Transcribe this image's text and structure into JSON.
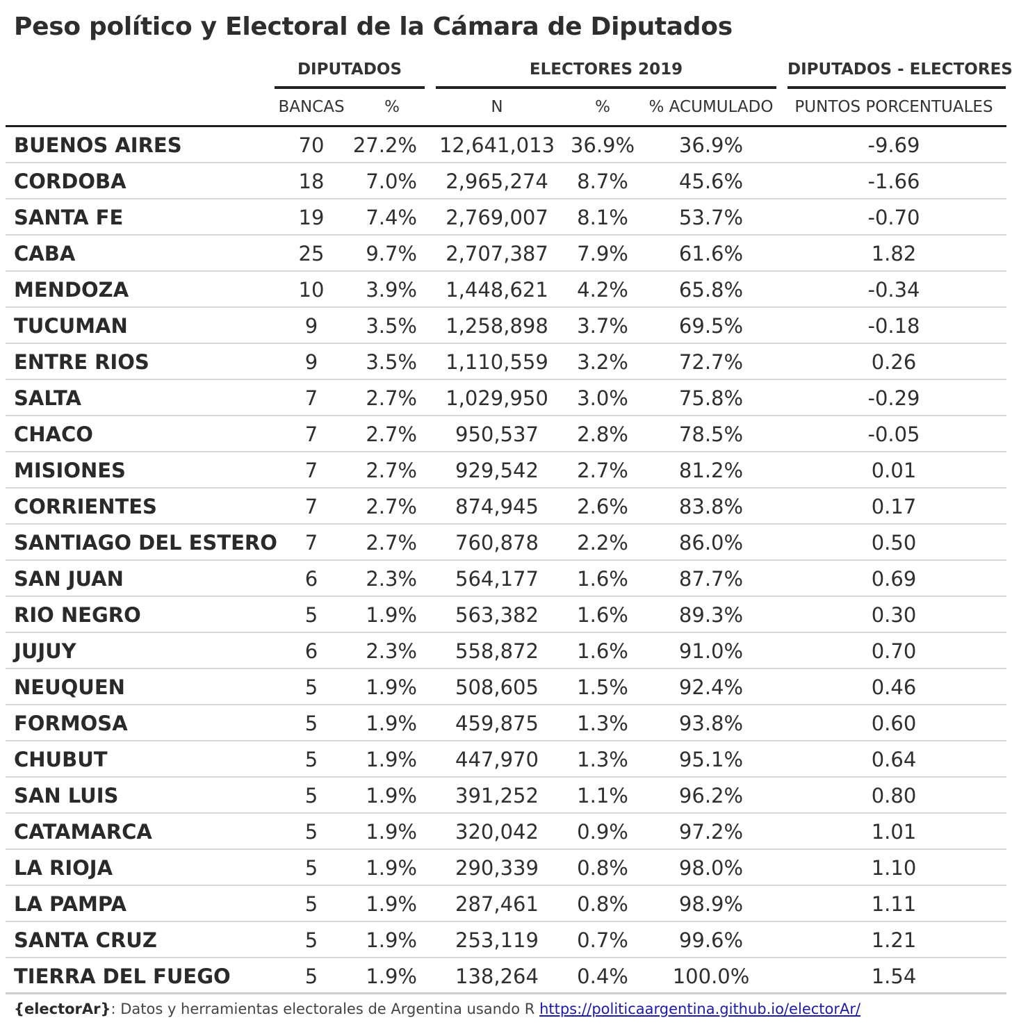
{
  "title": "Peso político y Electoral de la Cámara de Diputados",
  "spanners": {
    "diputados": "DIPUTADOS",
    "electores": "ELECTORES 2019",
    "diferencia": "DIPUTADOS - ELECTORES"
  },
  "columns": {
    "bancas": "BANCAS",
    "pct_dip": "%",
    "n": "N",
    "pct_elec": "%",
    "pct_acum": "% ACUMULADO",
    "puntos": "PUNTOS PORCENTUALES"
  },
  "rows": [
    {
      "provincia": "BUENOS AIRES",
      "bancas": "70",
      "pct_dip": "27.2%",
      "n": "12,641,013",
      "pct_elec": "36.9%",
      "pct_acum": "36.9%",
      "puntos": "-9.69"
    },
    {
      "provincia": "CORDOBA",
      "bancas": "18",
      "pct_dip": "7.0%",
      "n": "2,965,274",
      "pct_elec": "8.7%",
      "pct_acum": "45.6%",
      "puntos": "-1.66"
    },
    {
      "provincia": "SANTA FE",
      "bancas": "19",
      "pct_dip": "7.4%",
      "n": "2,769,007",
      "pct_elec": "8.1%",
      "pct_acum": "53.7%",
      "puntos": "-0.70"
    },
    {
      "provincia": "CABA",
      "bancas": "25",
      "pct_dip": "9.7%",
      "n": "2,707,387",
      "pct_elec": "7.9%",
      "pct_acum": "61.6%",
      "puntos": "1.82"
    },
    {
      "provincia": "MENDOZA",
      "bancas": "10",
      "pct_dip": "3.9%",
      "n": "1,448,621",
      "pct_elec": "4.2%",
      "pct_acum": "65.8%",
      "puntos": "-0.34"
    },
    {
      "provincia": "TUCUMAN",
      "bancas": "9",
      "pct_dip": "3.5%",
      "n": "1,258,898",
      "pct_elec": "3.7%",
      "pct_acum": "69.5%",
      "puntos": "-0.18"
    },
    {
      "provincia": "ENTRE RIOS",
      "bancas": "9",
      "pct_dip": "3.5%",
      "n": "1,110,559",
      "pct_elec": "3.2%",
      "pct_acum": "72.7%",
      "puntos": "0.26"
    },
    {
      "provincia": "SALTA",
      "bancas": "7",
      "pct_dip": "2.7%",
      "n": "1,029,950",
      "pct_elec": "3.0%",
      "pct_acum": "75.8%",
      "puntos": "-0.29"
    },
    {
      "provincia": "CHACO",
      "bancas": "7",
      "pct_dip": "2.7%",
      "n": "950,537",
      "pct_elec": "2.8%",
      "pct_acum": "78.5%",
      "puntos": "-0.05"
    },
    {
      "provincia": "MISIONES",
      "bancas": "7",
      "pct_dip": "2.7%",
      "n": "929,542",
      "pct_elec": "2.7%",
      "pct_acum": "81.2%",
      "puntos": "0.01"
    },
    {
      "provincia": "CORRIENTES",
      "bancas": "7",
      "pct_dip": "2.7%",
      "n": "874,945",
      "pct_elec": "2.6%",
      "pct_acum": "83.8%",
      "puntos": "0.17"
    },
    {
      "provincia": "SANTIAGO DEL ESTERO",
      "bancas": "7",
      "pct_dip": "2.7%",
      "n": "760,878",
      "pct_elec": "2.2%",
      "pct_acum": "86.0%",
      "puntos": "0.50"
    },
    {
      "provincia": "SAN JUAN",
      "bancas": "6",
      "pct_dip": "2.3%",
      "n": "564,177",
      "pct_elec": "1.6%",
      "pct_acum": "87.7%",
      "puntos": "0.69"
    },
    {
      "provincia": "RIO NEGRO",
      "bancas": "5",
      "pct_dip": "1.9%",
      "n": "563,382",
      "pct_elec": "1.6%",
      "pct_acum": "89.3%",
      "puntos": "0.30"
    },
    {
      "provincia": "JUJUY",
      "bancas": "6",
      "pct_dip": "2.3%",
      "n": "558,872",
      "pct_elec": "1.6%",
      "pct_acum": "91.0%",
      "puntos": "0.70"
    },
    {
      "provincia": "NEUQUEN",
      "bancas": "5",
      "pct_dip": "1.9%",
      "n": "508,605",
      "pct_elec": "1.5%",
      "pct_acum": "92.4%",
      "puntos": "0.46"
    },
    {
      "provincia": "FORMOSA",
      "bancas": "5",
      "pct_dip": "1.9%",
      "n": "459,875",
      "pct_elec": "1.3%",
      "pct_acum": "93.8%",
      "puntos": "0.60"
    },
    {
      "provincia": "CHUBUT",
      "bancas": "5",
      "pct_dip": "1.9%",
      "n": "447,970",
      "pct_elec": "1.3%",
      "pct_acum": "95.1%",
      "puntos": "0.64"
    },
    {
      "provincia": "SAN LUIS",
      "bancas": "5",
      "pct_dip": "1.9%",
      "n": "391,252",
      "pct_elec": "1.1%",
      "pct_acum": "96.2%",
      "puntos": "0.80"
    },
    {
      "provincia": "CATAMARCA",
      "bancas": "5",
      "pct_dip": "1.9%",
      "n": "320,042",
      "pct_elec": "0.9%",
      "pct_acum": "97.2%",
      "puntos": "1.01"
    },
    {
      "provincia": "LA RIOJA",
      "bancas": "5",
      "pct_dip": "1.9%",
      "n": "290,339",
      "pct_elec": "0.8%",
      "pct_acum": "98.0%",
      "puntos": "1.10"
    },
    {
      "provincia": "LA PAMPA",
      "bancas": "5",
      "pct_dip": "1.9%",
      "n": "287,461",
      "pct_elec": "0.8%",
      "pct_acum": "98.9%",
      "puntos": "1.11"
    },
    {
      "provincia": "SANTA CRUZ",
      "bancas": "5",
      "pct_dip": "1.9%",
      "n": "253,119",
      "pct_elec": "0.7%",
      "pct_acum": "99.6%",
      "puntos": "1.21"
    },
    {
      "provincia": "TIERRA DEL FUEGO",
      "bancas": "5",
      "pct_dip": "1.9%",
      "n": "138,264",
      "pct_elec": "0.4%",
      "pct_acum": "100.0%",
      "puntos": "1.54"
    }
  ],
  "footer": {
    "brand": "{electorAr}",
    "text": ": Datos y herramientas electorales de Argentina usando R ",
    "link": "https://politicaargentina.github.io/electorAr/"
  }
}
